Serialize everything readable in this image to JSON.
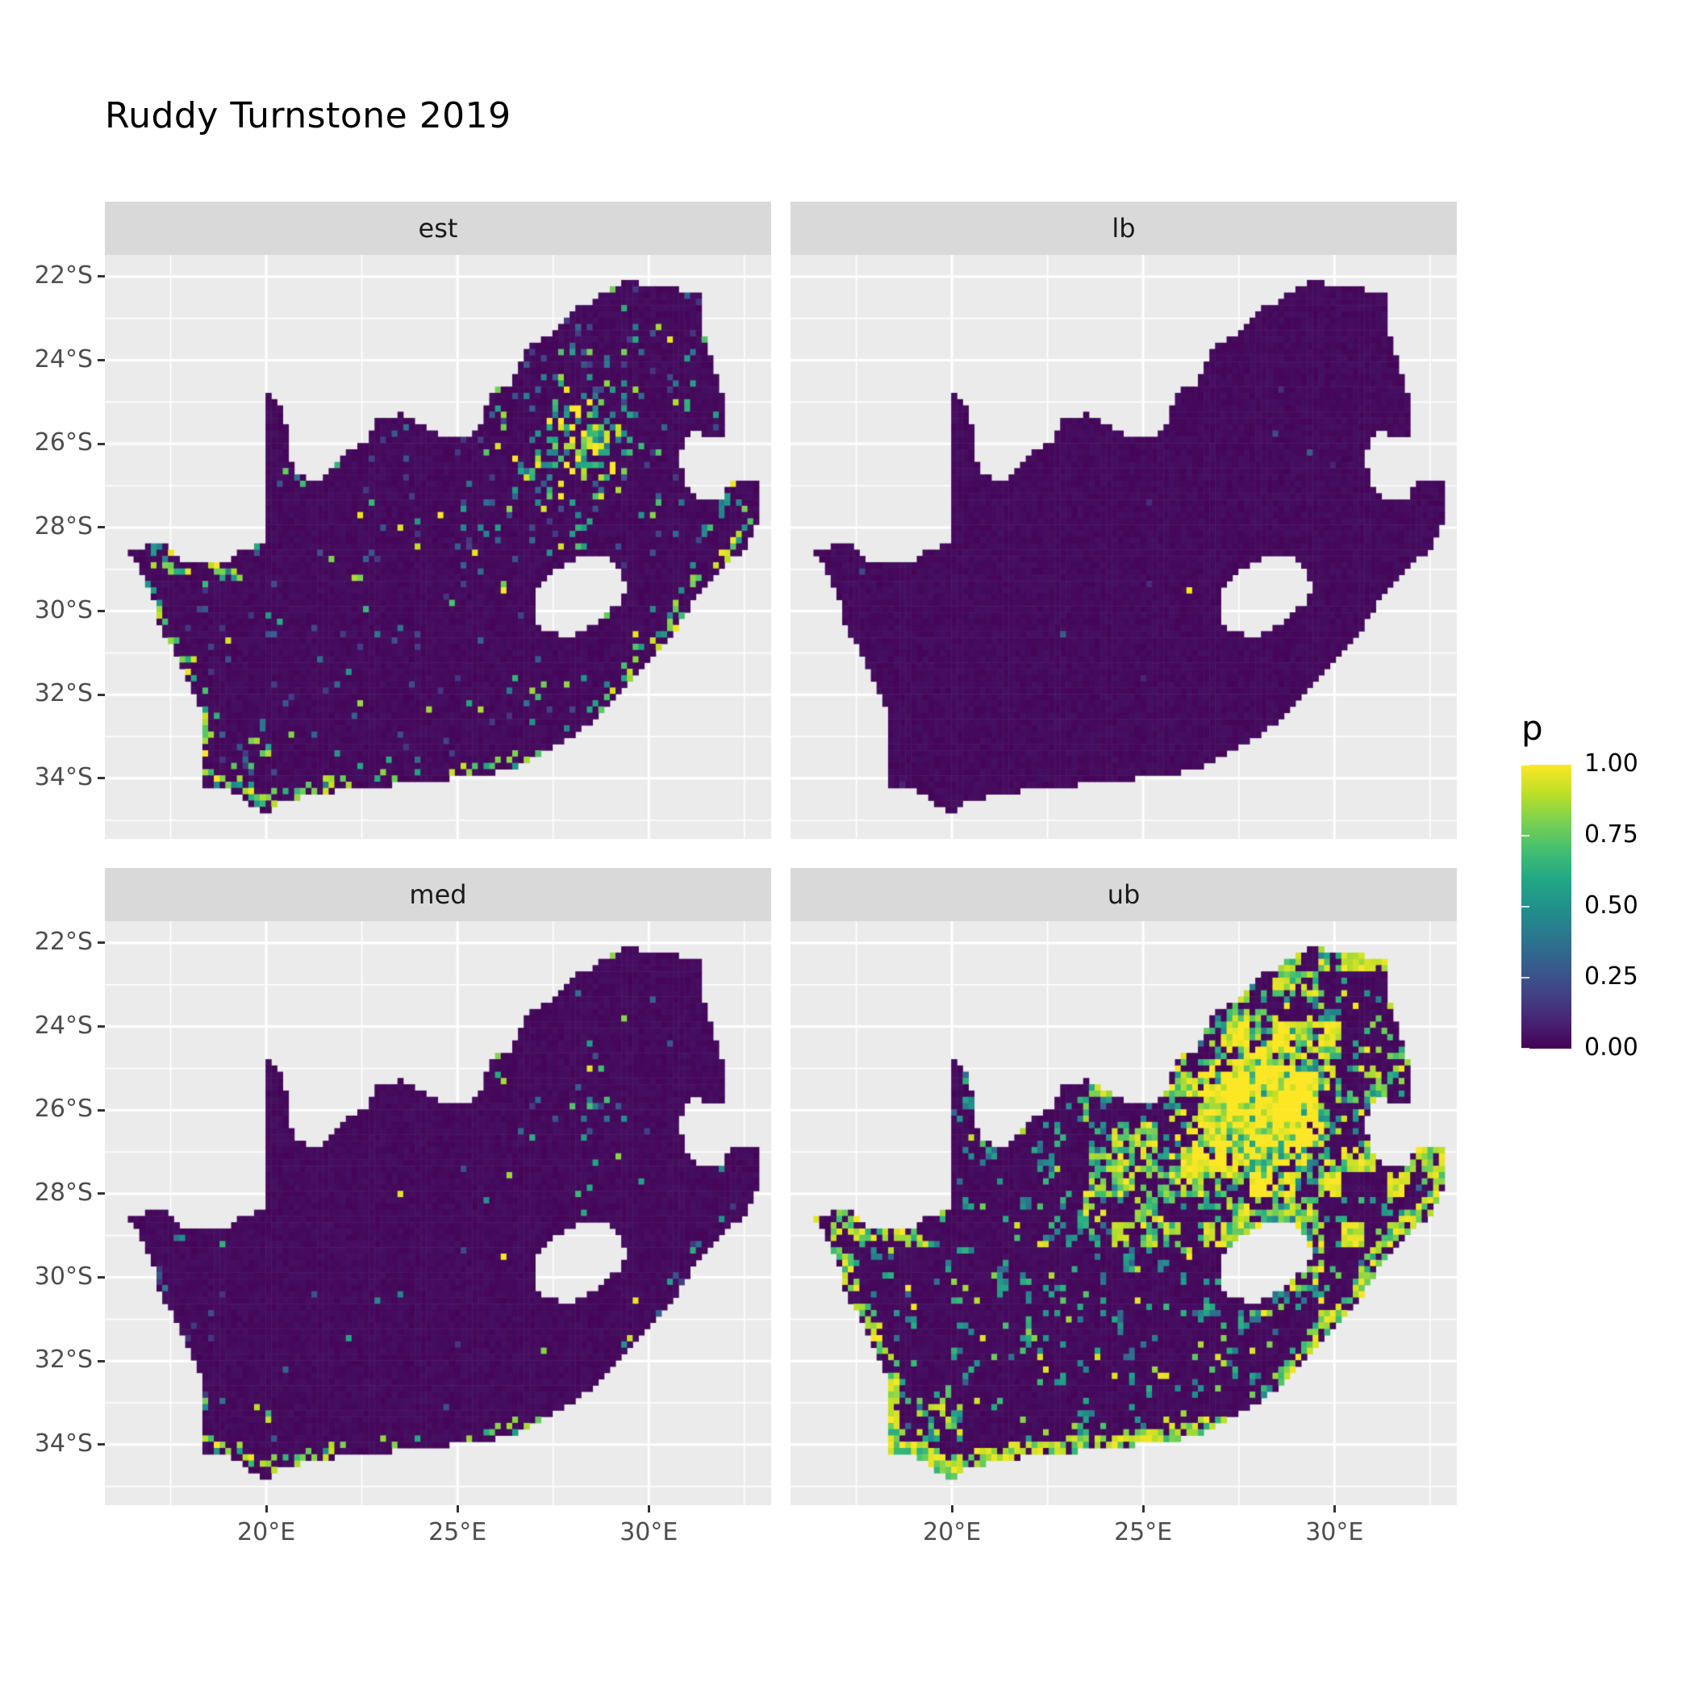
{
  "title": "Ruddy Turnstone 2019",
  "facets": [
    {
      "label": "est"
    },
    {
      "label": "lb"
    },
    {
      "label": "med"
    },
    {
      "label": "ub"
    }
  ],
  "axes": {
    "x_labels": [
      "20°E",
      "25°E",
      "30°E"
    ],
    "y_labels": [
      "22°S",
      "24°S",
      "26°S",
      "28°S",
      "30°S",
      "32°S",
      "34°S"
    ]
  },
  "legend": {
    "title": "p",
    "labels": [
      "1.00",
      "0.75",
      "0.50",
      "0.25",
      "0.00"
    ],
    "values": [
      1,
      0.75,
      0.5,
      0.25,
      0
    ]
  },
  "colors": {
    "panel_bg": "#EBEBEB",
    "strip_bg": "#D9D9D9",
    "grid": "#FFFFFF",
    "axis_text": "#4D4D4D",
    "tick": "#333333",
    "title": "#000000",
    "base_fill": "#440154"
  },
  "chart_data": {
    "type": "heatmap",
    "title": "Ruddy Turnstone 2019",
    "facet_labels": [
      "est",
      "lb",
      "med",
      "ub"
    ],
    "region": "South Africa",
    "variable": "p",
    "scale": {
      "limits": [
        0,
        1
      ],
      "breaks": [
        0,
        0.25,
        0.5,
        0.75,
        1
      ],
      "palette": "viridis",
      "colors": [
        {
          "t": 0.0,
          "c": "#440154"
        },
        {
          "t": 0.1,
          "c": "#482475"
        },
        {
          "t": 0.2,
          "c": "#414487"
        },
        {
          "t": 0.3,
          "c": "#355f8d"
        },
        {
          "t": 0.4,
          "c": "#2a788e"
        },
        {
          "t": 0.5,
          "c": "#21918c"
        },
        {
          "t": 0.6,
          "c": "#22a884"
        },
        {
          "t": 0.7,
          "c": "#44bf70"
        },
        {
          "t": 0.8,
          "c": "#7ad151"
        },
        {
          "t": 0.9,
          "c": "#bddf26"
        },
        {
          "t": 1.0,
          "c": "#fde725"
        }
      ]
    },
    "x": {
      "range": [
        15.78,
        33.2
      ],
      "breaks": [
        20,
        25,
        30
      ],
      "minor_breaks": [
        17.5,
        22.5,
        27.5,
        32.5
      ],
      "unit": "°E"
    },
    "y": {
      "range": [
        21.48,
        35.45
      ],
      "breaks": [
        22,
        24,
        26,
        28,
        30,
        32,
        34
      ],
      "minor_breaks": [
        23,
        25,
        27,
        29,
        31,
        33,
        35
      ],
      "unit": "°S"
    },
    "cell_size_deg": 0.15,
    "south_africa_outline": [
      [
        16.45,
        28.6
      ],
      [
        16.8,
        29.2
      ],
      [
        17.05,
        29.7
      ],
      [
        17.15,
        30.2
      ],
      [
        17.55,
        30.9
      ],
      [
        17.85,
        31.5
      ],
      [
        18.2,
        32.1
      ],
      [
        18.32,
        32.6
      ],
      [
        18.25,
        33.05
      ],
      [
        18.33,
        33.45
      ],
      [
        18.3,
        33.92
      ],
      [
        18.42,
        34.33
      ],
      [
        18.86,
        34.18
      ],
      [
        19.3,
        34.45
      ],
      [
        19.7,
        34.7
      ],
      [
        20.0,
        34.82
      ],
      [
        20.55,
        34.48
      ],
      [
        21.3,
        34.42
      ],
      [
        22.15,
        34.22
      ],
      [
        22.65,
        34.28
      ],
      [
        23.4,
        34.12
      ],
      [
        24.2,
        34.05
      ],
      [
        24.9,
        34.0
      ],
      [
        25.68,
        33.92
      ],
      [
        26.45,
        33.76
      ],
      [
        27.1,
        33.48
      ],
      [
        27.95,
        33.02
      ],
      [
        28.65,
        32.55
      ],
      [
        29.3,
        31.9
      ],
      [
        29.98,
        31.15
      ],
      [
        30.75,
        30.4
      ],
      [
        31.1,
        29.85
      ],
      [
        31.7,
        29.25
      ],
      [
        32.2,
        28.75
      ],
      [
        32.55,
        28.45
      ],
      [
        32.75,
        28.15
      ],
      [
        32.9,
        27.55
      ],
      [
        32.92,
        26.86
      ],
      [
        32.13,
        26.84
      ],
      [
        31.97,
        27.32
      ],
      [
        31.3,
        27.28
      ],
      [
        30.95,
        26.98
      ],
      [
        30.8,
        26.4
      ],
      [
        30.87,
        26.03
      ],
      [
        31.18,
        25.72
      ],
      [
        31.9,
        25.83
      ],
      [
        32.05,
        25.98
      ],
      [
        32.0,
        25.6
      ],
      [
        31.92,
        24.75
      ],
      [
        31.6,
        23.9
      ],
      [
        31.4,
        23.2
      ],
      [
        31.3,
        22.4
      ],
      [
        30.8,
        22.3
      ],
      [
        30.2,
        22.25
      ],
      [
        29.6,
        22.12
      ],
      [
        29.1,
        22.18
      ],
      [
        28.58,
        22.56
      ],
      [
        28.0,
        22.8
      ],
      [
        27.5,
        23.38
      ],
      [
        26.9,
        23.65
      ],
      [
        26.5,
        24.28
      ],
      [
        26.35,
        24.63
      ],
      [
        25.85,
        24.75
      ],
      [
        25.6,
        25.48
      ],
      [
        25.33,
        25.76
      ],
      [
        24.7,
        25.82
      ],
      [
        24.15,
        25.62
      ],
      [
        23.5,
        25.3
      ],
      [
        22.88,
        25.45
      ],
      [
        22.6,
        25.98
      ],
      [
        22.05,
        26.2
      ],
      [
        21.4,
        26.82
      ],
      [
        20.9,
        26.8
      ],
      [
        20.65,
        26.45
      ],
      [
        20.6,
        25.8
      ],
      [
        20.4,
        25.15
      ],
      [
        20.22,
        24.89
      ],
      [
        20.0,
        24.76
      ],
      [
        20.0,
        25.8
      ],
      [
        20.0,
        26.9
      ],
      [
        20.0,
        27.7
      ],
      [
        20.0,
        28.35
      ],
      [
        19.4,
        28.52
      ],
      [
        18.9,
        28.86
      ],
      [
        18.22,
        28.9
      ],
      [
        17.68,
        28.72
      ],
      [
        17.35,
        28.32
      ],
      [
        16.9,
        28.42
      ]
    ],
    "lesotho_hole": [
      [
        26.98,
        30.1
      ],
      [
        27.0,
        29.58
      ],
      [
        27.32,
        29.12
      ],
      [
        27.78,
        28.88
      ],
      [
        28.32,
        28.62
      ],
      [
        28.82,
        28.68
      ],
      [
        29.22,
        29.0
      ],
      [
        29.45,
        29.35
      ],
      [
        29.28,
        29.78
      ],
      [
        28.88,
        30.08
      ],
      [
        28.38,
        30.42
      ],
      [
        27.92,
        30.66
      ],
      [
        27.42,
        30.5
      ],
      [
        27.08,
        30.32
      ]
    ],
    "facets": [
      {
        "name": "est",
        "render": {
          "global": 0.035,
          "gauteng": 0.5,
          "gauteng_sigma": 0.85,
          "gauteng_boost": 0.45,
          "ne": 0.07,
          "ne_lon0": 24.5,
          "ne_lat1": 28.6,
          "cape": 0.12,
          "coast_south": 0.3,
          "coast_west": 0.18,
          "coast_east": 0.25,
          "coast_value_min": 0.4,
          "value_min": 0.15,
          "value_gamma": 2.0
        }
      },
      {
        "name": "lb",
        "render": {
          "global": 0.002,
          "coast_south": 0.03,
          "value_min": 0.1,
          "value_gamma": 2.5
        }
      },
      {
        "name": "med",
        "render": {
          "global": 0.007,
          "gauteng": 0.07,
          "gauteng_sigma": 1.0,
          "ne": 0.012,
          "ne_lon0": 25,
          "ne_lat1": 28.6,
          "cape": 0.04,
          "coast_south": 0.22,
          "coast_west": 0.05,
          "coast_east": 0.07,
          "coast_value_min": 0.45,
          "value_min": 0.15,
          "value_gamma": 1.6
        }
      },
      {
        "name": "ub",
        "render": {
          "global": 0.05,
          "gauteng": 1.4,
          "gauteng_sigma": 1.1,
          "gauteng_boost": 0.3,
          "ne": 0.1,
          "ne_lon0": 23.5,
          "ne_lat1": 29.3,
          "blob_ne": 0.3,
          "blob_ne_bright": 0.15,
          "mid_fil": 0.1,
          "cape": 0.3,
          "coast_south": 0.75,
          "coast_west": 0.4,
          "coast_east": 0.55,
          "lesotho_ring": 0.45,
          "coast_value_min": 0.6,
          "value_min": 0.3,
          "value_gamma": 0.75
        }
      }
    ]
  }
}
